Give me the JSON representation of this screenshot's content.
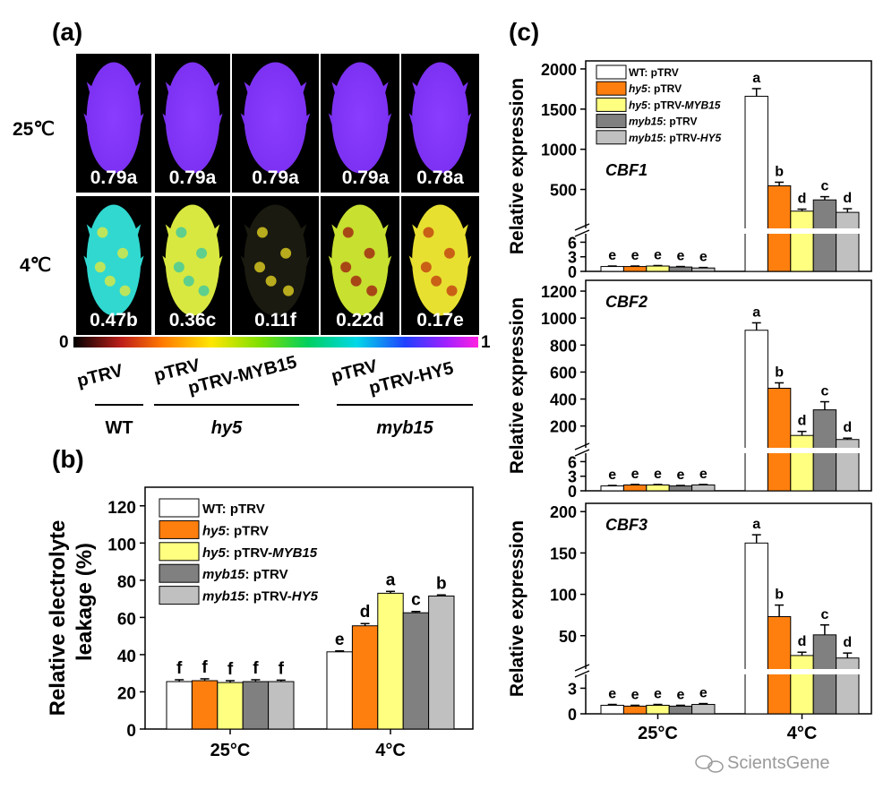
{
  "panel_labels": {
    "a": "(a)",
    "b": "(b)",
    "c": "(c)"
  },
  "series_colors": [
    "#ffffff",
    "#ff7f0e",
    "#ffff80",
    "#808080",
    "#c0c0c0"
  ],
  "legend": [
    {
      "parts": [
        {
          "t": "WT",
          "i": false
        },
        {
          "t": ": pTRV",
          "i": false
        }
      ]
    },
    {
      "parts": [
        {
          "t": "hy5",
          "i": true
        },
        {
          "t": ": pTRV",
          "i": false
        }
      ]
    },
    {
      "parts": [
        {
          "t": "hy5",
          "i": true
        },
        {
          "t": ": pTRV-",
          "i": false
        },
        {
          "t": "MYB15",
          "i": true
        }
      ]
    },
    {
      "parts": [
        {
          "t": "myb15",
          "i": true
        },
        {
          "t": ": pTRV",
          "i": false
        }
      ]
    },
    {
      "parts": [
        {
          "t": "myb15",
          "i": true
        },
        {
          "t": ": pTRV-",
          "i": false
        },
        {
          "t": "HY5",
          "i": true
        }
      ]
    }
  ],
  "panel_a": {
    "row_labels": [
      "25℃",
      "4℃"
    ],
    "values_25": [
      "0.79a",
      "0.79a",
      "0.79a",
      "0.79a",
      "0.78a"
    ],
    "values_4": [
      "0.47b",
      "0.36c",
      "0.11f",
      "0.22d",
      "0.17e"
    ],
    "colorbar_min": "0",
    "colorbar_max": "1",
    "constructs": [
      "pTRV",
      "pTRV",
      "pTRV-MYB15",
      "pTRV",
      "pTRV-HY5"
    ],
    "genotypes": [
      "WT",
      "hy5",
      "myb15"
    ]
  },
  "watermark": "ScientsGene",
  "chart_data": [
    {
      "type": "bar",
      "panel": "b",
      "title": "",
      "ylabel": "Relative electrolyte leakage (%)",
      "ylabel_lines": [
        "Relative electrolyte",
        "leakage (%)"
      ],
      "categories": [
        "25°C",
        "4°C"
      ],
      "ylim": [
        0,
        130
      ],
      "yticks": [
        0,
        20,
        40,
        60,
        80,
        100,
        120
      ],
      "series": [
        {
          "name": "WT: pTRV",
          "values": [
            25.5,
            41.5
          ],
          "errors": [
            1.0,
            0.5
          ],
          "labels": [
            "f",
            "e"
          ]
        },
        {
          "name": "hy5: pTRV",
          "values": [
            26.0,
            55.5
          ],
          "errors": [
            1.0,
            1.2
          ],
          "labels": [
            "f",
            "d"
          ]
        },
        {
          "name": "hy5: pTRV-MYB15",
          "values": [
            25.0,
            73.0
          ],
          "errors": [
            1.0,
            1.0
          ],
          "labels": [
            "f",
            "a"
          ]
        },
        {
          "name": "myb15: pTRV",
          "values": [
            25.5,
            62.5
          ],
          "errors": [
            1.0,
            0.7
          ],
          "labels": [
            "f",
            "c"
          ]
        },
        {
          "name": "myb15: pTRV-HY5",
          "values": [
            25.5,
            71.5
          ],
          "errors": [
            0.8,
            0.6
          ],
          "labels": [
            "f",
            "b"
          ]
        }
      ]
    },
    {
      "type": "bar",
      "panel": "c",
      "gene": "CBF1",
      "ylabel": "Relative expression",
      "categories": [
        "25°C",
        "4°C"
      ],
      "broken_axis": true,
      "lower_range": [
        0,
        7
      ],
      "lower_ticks": [
        0,
        3,
        6
      ],
      "upper_range": [
        60,
        2100
      ],
      "upper_ticks": [
        500,
        1000,
        1500,
        2000
      ],
      "series": [
        {
          "name": "WT: pTRV",
          "values": [
            1.0,
            1660
          ],
          "errors": [
            0.1,
            95
          ],
          "labels": [
            "e",
            "a"
          ]
        },
        {
          "name": "hy5: pTRV",
          "values": [
            1.0,
            545
          ],
          "errors": [
            0.1,
            45
          ],
          "labels": [
            "e",
            "b"
          ]
        },
        {
          "name": "hy5: pTRV-MYB15",
          "values": [
            1.1,
            230
          ],
          "errors": [
            0.1,
            25
          ],
          "labels": [
            "e",
            "d"
          ]
        },
        {
          "name": "myb15: pTRV",
          "values": [
            0.9,
            370
          ],
          "errors": [
            0.1,
            40
          ],
          "labels": [
            "e",
            "c"
          ]
        },
        {
          "name": "myb15: pTRV-HY5",
          "values": [
            0.7,
            215
          ],
          "errors": [
            0.1,
            45
          ],
          "labels": [
            "e",
            "d"
          ]
        }
      ]
    },
    {
      "type": "bar",
      "panel": "c",
      "gene": "CBF2",
      "ylabel": "Relative expression",
      "categories": [
        "25°C",
        "4°C"
      ],
      "broken_axis": true,
      "lower_range": [
        0,
        7
      ],
      "lower_ticks": [
        0,
        3,
        6
      ],
      "upper_range": [
        65,
        1280
      ],
      "upper_ticks": [
        200,
        400,
        600,
        800,
        1000,
        1200
      ],
      "series": [
        {
          "name": "WT: pTRV",
          "values": [
            1.0,
            910
          ],
          "errors": [
            0.1,
            55
          ],
          "labels": [
            "e",
            "a"
          ]
        },
        {
          "name": "hy5: pTRV",
          "values": [
            1.2,
            480
          ],
          "errors": [
            0.1,
            40
          ],
          "labels": [
            "e",
            "b"
          ]
        },
        {
          "name": "hy5: pTRV-MYB15",
          "values": [
            1.2,
            130
          ],
          "errors": [
            0.1,
            30
          ],
          "labels": [
            "e",
            "d"
          ]
        },
        {
          "name": "myb15: pTRV",
          "values": [
            1.0,
            320
          ],
          "errors": [
            0.1,
            60
          ],
          "labels": [
            "e",
            "c"
          ]
        },
        {
          "name": "myb15: pTRV-HY5",
          "values": [
            1.2,
            100
          ],
          "errors": [
            0.1,
            10
          ],
          "labels": [
            "e",
            "d"
          ]
        }
      ]
    },
    {
      "type": "bar",
      "panel": "c",
      "gene": "CBF3",
      "ylabel": "Relative expression",
      "categories": [
        "25°C",
        "4°C"
      ],
      "broken_axis": true,
      "lower_range": [
        0,
        4.2
      ],
      "lower_ticks": [
        0,
        3
      ],
      "upper_range": [
        14,
        210
      ],
      "upper_ticks": [
        50,
        100,
        150,
        200
      ],
      "series": [
        {
          "name": "WT: pTRV",
          "values": [
            1.0,
            162
          ],
          "errors": [
            0.1,
            10
          ],
          "labels": [
            "e",
            "a"
          ]
        },
        {
          "name": "hy5: pTRV",
          "values": [
            0.9,
            73
          ],
          "errors": [
            0.1,
            14
          ],
          "labels": [
            "e",
            "b"
          ]
        },
        {
          "name": "hy5: pTRV-MYB15",
          "values": [
            1.0,
            26
          ],
          "errors": [
            0.1,
            4
          ],
          "labels": [
            "e",
            "d"
          ]
        },
        {
          "name": "myb15: pTRV",
          "values": [
            0.9,
            51
          ],
          "errors": [
            0.1,
            12
          ],
          "labels": [
            "e",
            "c"
          ]
        },
        {
          "name": "myb15: pTRV-HY5",
          "values": [
            1.1,
            23
          ],
          "errors": [
            0.1,
            6
          ],
          "labels": [
            "e",
            "d"
          ]
        }
      ]
    }
  ]
}
